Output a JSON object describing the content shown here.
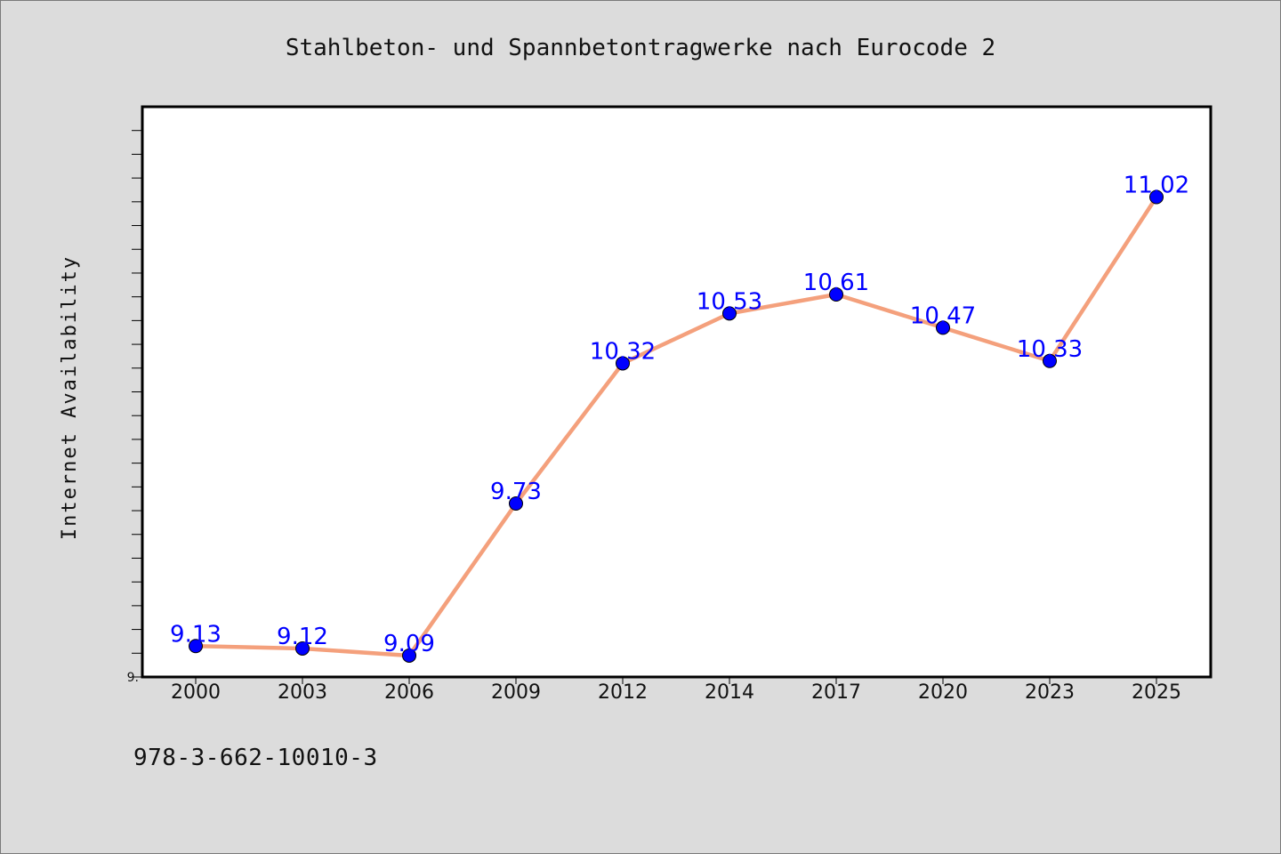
{
  "chart_data": {
    "type": "line",
    "title": "Stahlbeton- und Spannbetontragwerke nach Eurocode 2",
    "xlabel": "",
    "ylabel": "Internet Availability",
    "categories": [
      "2000",
      "2003",
      "2006",
      "2009",
      "2012",
      "2014",
      "2017",
      "2020",
      "2023",
      "2025"
    ],
    "series": [
      {
        "values": [
          9.13,
          9.12,
          9.09,
          9.73,
          10.32,
          10.53,
          10.61,
          10.47,
          10.33,
          11.02
        ],
        "data_labels": [
          "9.13",
          "9.12",
          "9.09",
          "9.73",
          "10.32",
          "10.53",
          "10.61",
          "10.47",
          "10.33",
          "11.02"
        ]
      }
    ],
    "ylim": [
      9.0,
      11.4
    ],
    "ytick_labels": [
      {
        "value": 9.0,
        "label": "9."
      }
    ],
    "grid": false,
    "legend": "none",
    "colors": {
      "line": "#f4a07c",
      "marker": "#0000ff",
      "marker_edge": "#000000",
      "data_label": "#0000ff",
      "background": "#dcdcdc",
      "plot_background": "#ffffff"
    }
  },
  "footer": {
    "isbn": "978-3-662-10010-3"
  }
}
